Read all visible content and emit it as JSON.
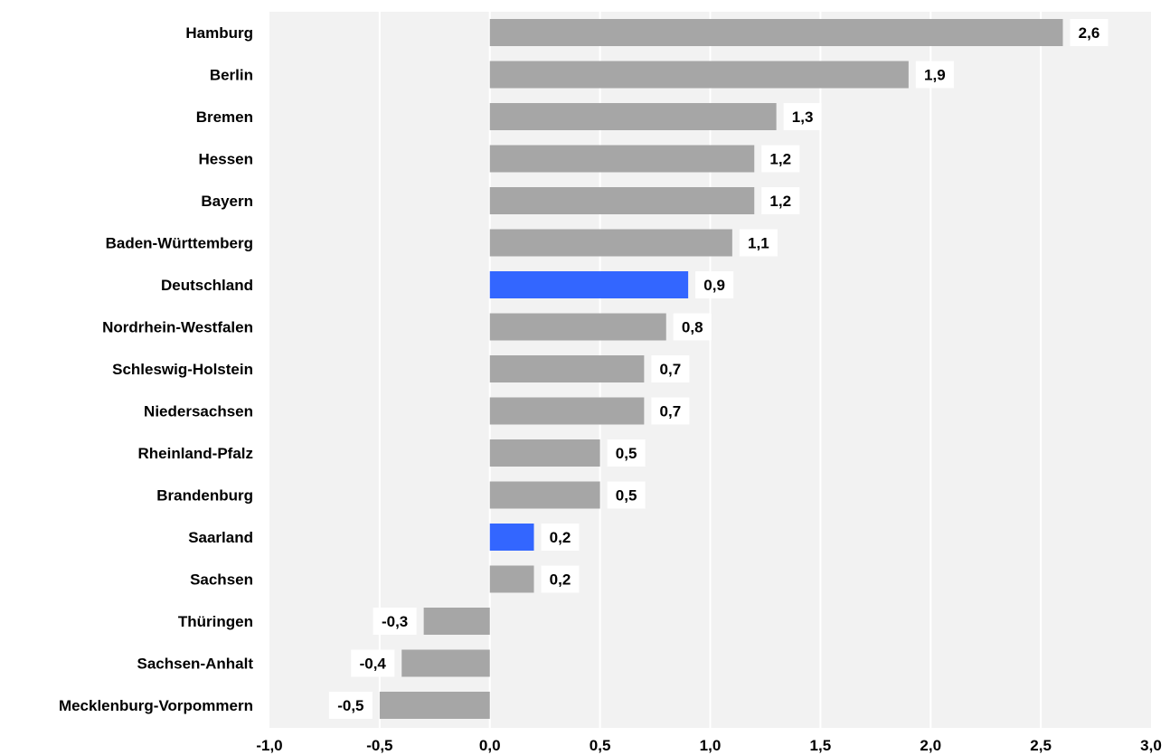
{
  "chart_data": {
    "type": "bar",
    "orientation": "horizontal",
    "categories": [
      "Hamburg",
      "Berlin",
      "Bremen",
      "Hessen",
      "Bayern",
      "Baden-Württemberg",
      "Deutschland",
      "Nordrhein-Westfalen",
      "Schleswig-Holstein",
      "Niedersachsen",
      "Rheinland-Pfalz",
      "Brandenburg",
      "Saarland",
      "Sachsen",
      "Thüringen",
      "Sachsen-Anhalt",
      "Mecklenburg-Vorpommern"
    ],
    "values": [
      2.6,
      1.9,
      1.3,
      1.2,
      1.2,
      1.1,
      0.9,
      0.8,
      0.7,
      0.7,
      0.5,
      0.5,
      0.2,
      0.2,
      -0.3,
      -0.4,
      -0.5
    ],
    "value_labels": [
      "2,6",
      "1,9",
      "1,3",
      "1,2",
      "1,2",
      "1,1",
      "0,9",
      "0,8",
      "0,7",
      "0,7",
      "0,5",
      "0,5",
      "0,2",
      "0,2",
      "-0,3",
      "-0,4",
      "-0,5"
    ],
    "highlighted": [
      "Deutschland",
      "Saarland"
    ],
    "xlim": [
      -1.0,
      3.0
    ],
    "xticks": [
      -1.0,
      -0.5,
      0.0,
      0.5,
      1.0,
      1.5,
      2.0,
      2.5,
      3.0
    ],
    "xtick_labels": [
      "-1,0",
      "-0,5",
      "0,0",
      "0,5",
      "1,0",
      "1,5",
      "2,0",
      "2,5",
      "3,0"
    ],
    "title": "",
    "xlabel": "",
    "ylabel": "",
    "grid": "vertical",
    "colors": {
      "bar": "#a6a6a6",
      "highlight": "#3366ff",
      "plot_background": "#f2f2f2",
      "gridline": "#ffffff",
      "label_box": "#ffffff"
    }
  }
}
